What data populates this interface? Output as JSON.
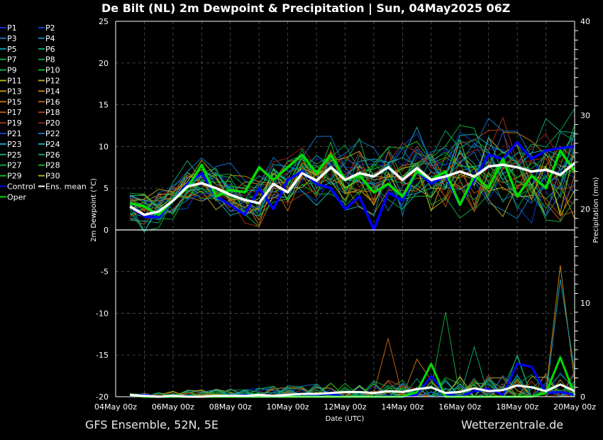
{
  "title": "De Bilt  (NL)  2m Dewpoint & Precipitation | Sun, 04May2025 06Z",
  "footer_left": "GFS Ensemble, 52N, 5E",
  "footer_right": "Wetterzentrale.de",
  "chart_data": {
    "type": "line",
    "title": "De Bilt  (NL)  2m Dewpoint & Precipitation | Sun, 04May2025 06Z",
    "xlabel": "Date (UTC)",
    "ylabel": "2m Dewpoint (°C)",
    "y2label": "Precipitation (mm)",
    "ylim": [
      -20,
      25
    ],
    "y2lim": [
      0,
      40
    ],
    "xlim_days": [
      0,
      16
    ],
    "yticks": [
      "25",
      "20",
      "15",
      "10",
      "5",
      "0",
      "-5",
      "-10",
      "-15",
      "-20"
    ],
    "y2ticks": [
      "40",
      "30",
      "20",
      "10",
      "0"
    ],
    "xticks": [
      "04May 00z",
      "06May 00z",
      "08May 00z",
      "10May 00z",
      "12May 00z",
      "14May 00z",
      "16May 00z",
      "18May 00z",
      "20May 00z"
    ],
    "grid": true,
    "legend_position": "left-outside",
    "x_days": [
      0.5,
      1,
      1.5,
      2,
      2.5,
      3,
      3.5,
      4,
      4.5,
      5,
      5.5,
      6,
      6.5,
      7,
      7.5,
      8,
      8.5,
      9,
      9.5,
      10,
      10.5,
      11,
      11.5,
      12,
      12.5,
      13,
      13.5,
      14,
      14.5,
      15,
      15.5,
      16
    ],
    "highlight_series": [
      {
        "name": "Control",
        "color": "#0000ff",
        "dewpoint": [
          2.8,
          1.6,
          1.5,
          3.5,
          5.5,
          6.8,
          4.0,
          3.0,
          1.8,
          5.0,
          2.5,
          6.0,
          7.0,
          5.5,
          5.0,
          2.5,
          4.0,
          0.0,
          4.5,
          3.5,
          7.0,
          5.5,
          6.5,
          3.0,
          6.0,
          9.0,
          8.5,
          10.5,
          8.5,
          9.5,
          9.8,
          10.0
        ],
        "precip": [
          0.1,
          0.2,
          0,
          0.1,
          0,
          0,
          0.1,
          0,
          0.2,
          0,
          0,
          0.1,
          0,
          0.2,
          0.3,
          0,
          0,
          0,
          0.1,
          0,
          0.2,
          2.2,
          0.3,
          0,
          0.6,
          0.8,
          0.2,
          3.5,
          3.2,
          0.4,
          0.5,
          0.2
        ]
      },
      {
        "name": "Oper",
        "color": "#00dd00",
        "dewpoint": [
          3.2,
          2.8,
          1.8,
          3.5,
          5.0,
          7.8,
          4.0,
          4.8,
          4.5,
          7.5,
          6.0,
          7.5,
          9.0,
          6.8,
          9.0,
          6.0,
          6.5,
          4.5,
          5.5,
          4.0,
          7.0,
          6.0,
          7.0,
          3.0,
          6.5,
          5.0,
          8.5,
          4.0,
          6.5,
          5.0,
          9.5,
          7.0
        ],
        "precip": [
          0.2,
          0,
          0,
          0,
          0,
          0,
          0,
          0,
          0,
          0,
          0,
          0,
          0,
          0,
          0,
          0,
          0,
          0,
          0,
          0,
          0.5,
          3.5,
          0,
          0,
          0,
          0,
          0,
          0,
          0,
          0.4,
          4.2,
          0.2
        ]
      },
      {
        "name": "Ens. mean",
        "color": "#ffffff",
        "dewpoint": [
          2.8,
          1.8,
          2.2,
          3.5,
          5.2,
          5.6,
          5.0,
          4.2,
          3.6,
          3.2,
          5.5,
          4.5,
          6.8,
          5.9,
          7.5,
          6.0,
          6.8,
          6.4,
          7.5,
          6.0,
          7.4,
          6.0,
          6.4,
          7.0,
          6.4,
          7.6,
          7.8,
          7.5,
          7.0,
          7.2,
          6.6,
          8.0
        ],
        "precip": [
          0.2,
          0.1,
          0,
          0.1,
          0,
          0,
          0.1,
          0.1,
          0.1,
          0.2,
          0.1,
          0.2,
          0.3,
          0.3,
          0.4,
          0.5,
          0.5,
          0.4,
          0.6,
          0.5,
          0.8,
          1.0,
          0.4,
          0.5,
          0.9,
          0.6,
          0.7,
          1.2,
          1.0,
          0.6,
          1.3,
          0.6
        ]
      }
    ],
    "members": [
      {
        "name": "P1",
        "color": "#0a2fd0"
      },
      {
        "name": "P2",
        "color": "#0a3fc8"
      },
      {
        "name": "P3",
        "color": "#0a6fc0"
      },
      {
        "name": "P4",
        "color": "#0a80c0"
      },
      {
        "name": "P5",
        "color": "#0a9ab0"
      },
      {
        "name": "P6",
        "color": "#0aa070"
      },
      {
        "name": "P7",
        "color": "#0aa050"
      },
      {
        "name": "P8",
        "color": "#0aa040"
      },
      {
        "name": "P9",
        "color": "#0ab030"
      },
      {
        "name": "P10",
        "color": "#0ab820"
      },
      {
        "name": "P11",
        "color": "#b0b020"
      },
      {
        "name": "P12",
        "color": "#b8a020"
      },
      {
        "name": "P13",
        "color": "#c09010"
      },
      {
        "name": "P14",
        "color": "#c08010"
      },
      {
        "name": "P15",
        "color": "#c07010"
      },
      {
        "name": "P16",
        "color": "#b86010"
      },
      {
        "name": "P17",
        "color": "#b05010"
      },
      {
        "name": "P18",
        "color": "#a84018"
      },
      {
        "name": "P19",
        "color": "#a03018"
      },
      {
        "name": "P20",
        "color": "#902018"
      },
      {
        "name": "P21",
        "color": "#1040c0"
      },
      {
        "name": "P22",
        "color": "#1070c0"
      },
      {
        "name": "P23",
        "color": "#10a0c0"
      },
      {
        "name": "P24",
        "color": "#10a8b0"
      },
      {
        "name": "P25",
        "color": "#10a080"
      },
      {
        "name": "P26",
        "color": "#10a060"
      },
      {
        "name": "P27",
        "color": "#10a040"
      },
      {
        "name": "P28",
        "color": "#10b030"
      },
      {
        "name": "P29",
        "color": "#10b820"
      },
      {
        "name": "P30",
        "color": "#b0a810"
      }
    ],
    "legend": [
      "P1",
      "P2",
      "P3",
      "P4",
      "P5",
      "P6",
      "P7",
      "P8",
      "P9",
      "P10",
      "P11",
      "P12",
      "P13",
      "P14",
      "P15",
      "P16",
      "P17",
      "P18",
      "P19",
      "P20",
      "P21",
      "P22",
      "P23",
      "P24",
      "P25",
      "P26",
      "P27",
      "P28",
      "P29",
      "P30",
      "Control",
      "Ens. mean",
      "Oper"
    ],
    "member_spread_c": 2.6,
    "member_precip_peaks": [
      {
        "member": "P14",
        "day": 15.3,
        "mm": 14.0
      },
      {
        "member": "P23",
        "day": 15.6,
        "mm": 12.5
      },
      {
        "member": "P27",
        "day": 11.7,
        "mm": 9.0
      },
      {
        "member": "P16",
        "day": 9.4,
        "mm": 6.2
      },
      {
        "member": "P6",
        "day": 12.7,
        "mm": 5.3
      },
      {
        "member": "P15",
        "day": 10.7,
        "mm": 4.0
      },
      {
        "member": "P25",
        "day": 14.2,
        "mm": 4.3
      },
      {
        "member": "P8",
        "day": 14.0,
        "mm": 4.5
      }
    ]
  }
}
